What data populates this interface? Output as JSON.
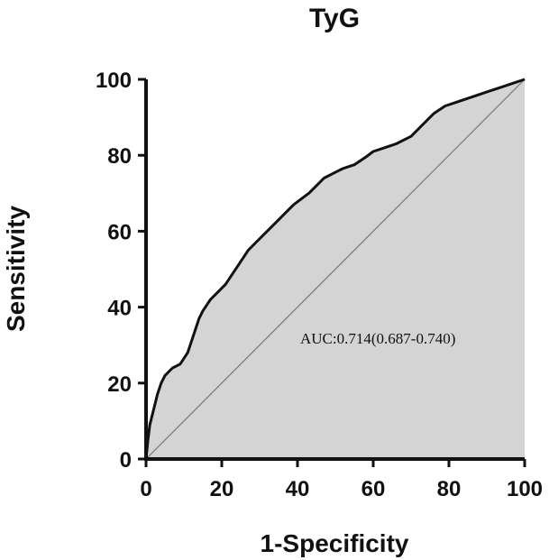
{
  "chart_data": {
    "type": "line",
    "title": "TyG",
    "xlabel": "1-Specificity",
    "ylabel": "Sensitivity",
    "xlim": [
      0,
      100
    ],
    "ylim": [
      0,
      100
    ],
    "xticks": [
      "0",
      "20",
      "40",
      "60",
      "80",
      "100"
    ],
    "yticks": [
      "0",
      "20",
      "40",
      "60",
      "80",
      "100"
    ],
    "grid": false,
    "fill_under_curve": true,
    "colors": {
      "curve": "#111111",
      "fill": "#d4d4d4",
      "reference": "#777777",
      "axis": "#111111"
    },
    "annotation": "AUC:0.714(0.687-0.740)",
    "series": [
      {
        "values": [
          [
            0,
            0
          ],
          [
            0.5,
            5
          ],
          [
            1,
            9
          ],
          [
            2,
            13
          ],
          [
            3,
            17
          ],
          [
            4,
            20
          ],
          [
            5,
            22
          ],
          [
            7,
            24
          ],
          [
            9,
            25
          ],
          [
            11,
            28
          ],
          [
            12,
            31
          ],
          [
            13,
            34
          ],
          [
            14,
            37
          ],
          [
            15,
            39
          ],
          [
            17,
            42
          ],
          [
            19,
            44
          ],
          [
            21,
            46
          ],
          [
            23,
            49
          ],
          [
            25,
            52
          ],
          [
            27,
            55
          ],
          [
            29,
            57
          ],
          [
            31,
            59
          ],
          [
            33,
            61
          ],
          [
            35,
            63
          ],
          [
            37,
            65
          ],
          [
            39,
            67
          ],
          [
            41,
            68.5
          ],
          [
            43,
            70
          ],
          [
            45,
            72
          ],
          [
            47,
            74
          ],
          [
            50,
            75.5
          ],
          [
            52,
            76.5
          ],
          [
            55,
            77.5
          ],
          [
            58,
            79.5
          ],
          [
            60,
            81
          ],
          [
            63,
            82
          ],
          [
            66,
            83
          ],
          [
            70,
            85
          ],
          [
            73,
            88
          ],
          [
            76,
            91
          ],
          [
            79,
            93
          ],
          [
            82,
            94
          ],
          [
            85,
            95
          ],
          [
            88,
            96
          ],
          [
            91,
            97
          ],
          [
            94,
            98
          ],
          [
            97,
            99
          ],
          [
            100,
            100
          ]
        ]
      },
      {
        "values": [
          [
            0,
            0
          ],
          [
            100,
            100
          ]
        ]
      }
    ]
  }
}
